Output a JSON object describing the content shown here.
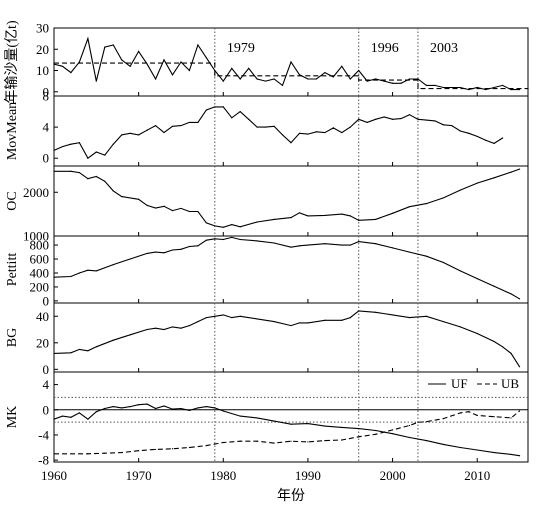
{
  "chart_data": {
    "type": "line",
    "xlabel": "年份",
    "xlim": [
      1960,
      2016
    ],
    "x_ticks": [
      1960,
      1970,
      1980,
      1990,
      2000,
      2010
    ],
    "breakpoints": [
      1979,
      1996,
      2003
    ],
    "breakpoint_labels": [
      "1979",
      "1996",
      "2003"
    ],
    "panels": [
      {
        "ylabel": "年输沙量(亿t)",
        "ylim": [
          -2,
          30
        ],
        "y_ticks": [
          0,
          10,
          20,
          30
        ],
        "series": [
          {
            "style": "solid",
            "x": [
              1960,
              1961,
              1962,
              1963,
              1964,
              1965,
              1966,
              1967,
              1968,
              1969,
              1970,
              1971,
              1972,
              1973,
              1974,
              1975,
              1976,
              1977,
              1978,
              1979,
              1980,
              1981,
              1982,
              1983,
              1984,
              1985,
              1986,
              1987,
              1988,
              1989,
              1990,
              1991,
              1992,
              1993,
              1994,
              1995,
              1996,
              1997,
              1998,
              1999,
              2000,
              2001,
              2002,
              2003,
              2004,
              2005,
              2006,
              2007,
              2008,
              2009,
              2010,
              2011,
              2012,
              2013,
              2014,
              2015
            ],
            "values": [
              13,
              12,
              9,
              14,
              25,
              5,
              21,
              22,
              15,
              12,
              19,
              13,
              6,
              15,
              8,
              14,
              10,
              22,
              16,
              10,
              5,
              11,
              6,
              11,
              6,
              5,
              6,
              3,
              14,
              8,
              6,
              6,
              9,
              7,
              12,
              6,
              10,
              5,
              6,
              5,
              4,
              4,
              6,
              6,
              3,
              3,
              2,
              2,
              2,
              1,
              2,
              1,
              2,
              3,
              1,
              1
            ]
          },
          {
            "style": "dashed",
            "x": [
              1960,
              1979,
              1979,
              1996,
              1996,
              2003,
              2003,
              2016
            ],
            "values": [
              13.5,
              13.5,
              7.5,
              7.5,
              5.5,
              5.5,
              1.5,
              1.5
            ]
          }
        ]
      },
      {
        "ylabel": "MovMean",
        "ylim": [
          -1,
          8
        ],
        "y_ticks": [
          0,
          4,
          8
        ],
        "series": [
          {
            "style": "solid",
            "x": [
              1960,
              1961,
              1962,
              1963,
              1964,
              1965,
              1966,
              1967,
              1968,
              1969,
              1970,
              1971,
              1972,
              1973,
              1974,
              1975,
              1976,
              1977,
              1978,
              1979,
              1980,
              1981,
              1982,
              1983,
              1984,
              1985,
              1986,
              1987,
              1988,
              1989,
              1990,
              1991,
              1992,
              1993,
              1994,
              1995,
              1996,
              1997,
              1998,
              1999,
              2000,
              2001,
              2002,
              2003,
              2004,
              2005,
              2006,
              2007,
              2008,
              2009,
              2010,
              2011,
              2012,
              2013
            ],
            "values": [
              1.0,
              1.5,
              1.8,
              2.0,
              0.0,
              0.8,
              0.4,
              1.8,
              3.0,
              3.2,
              3.0,
              3.6,
              4.2,
              3.3,
              4.1,
              4.2,
              4.6,
              4.6,
              6.2,
              6.6,
              6.6,
              5.2,
              6.0,
              5.0,
              4.0,
              4.0,
              4.1,
              3.0,
              2.0,
              3.2,
              3.1,
              3.4,
              3.3,
              3.9,
              3.3,
              4.0,
              5.0,
              4.6,
              5.0,
              5.3,
              5.0,
              5.1,
              5.6,
              5.0,
              4.9,
              4.8,
              4.3,
              4.2,
              3.5,
              3.2,
              2.8,
              2.3,
              1.9,
              2.6
            ]
          }
        ]
      },
      {
        "ylabel": "OC",
        "ylim": [
          1000,
          2600
        ],
        "y_ticks": [
          1000,
          2000
        ],
        "series": [
          {
            "style": "solid",
            "x": [
              1960,
              1962,
              1963,
              1964,
              1965,
              1966,
              1967,
              1968,
              1970,
              1971,
              1972,
              1973,
              1974,
              1975,
              1976,
              1977,
              1978,
              1979,
              1980,
              1981,
              1982,
              1984,
              1986,
              1988,
              1989,
              1990,
              1992,
              1994,
              1995,
              1996,
              1998,
              2000,
              2002,
              2004,
              2006,
              2008,
              2010,
              2012,
              2014,
              2015
            ],
            "values": [
              2480,
              2480,
              2450,
              2310,
              2360,
              2250,
              2030,
              1900,
              1840,
              1700,
              1640,
              1680,
              1580,
              1630,
              1560,
              1560,
              1300,
              1230,
              1200,
              1260,
              1210,
              1320,
              1380,
              1420,
              1530,
              1460,
              1470,
              1500,
              1460,
              1360,
              1380,
              1520,
              1670,
              1740,
              1870,
              2050,
              2210,
              2330,
              2460,
              2530
            ]
          }
        ]
      },
      {
        "ylabel": "Pettitt",
        "ylim": [
          -30,
          930
        ],
        "y_ticks": [
          0,
          200,
          400,
          600,
          800
        ],
        "series": [
          {
            "style": "solid",
            "x": [
              1960,
              1962,
              1963,
              1964,
              1965,
              1967,
              1969,
              1971,
              1972,
              1973,
              1974,
              1975,
              1976,
              1977,
              1978,
              1979,
              1980,
              1981,
              1982,
              1984,
              1986,
              1988,
              1989,
              1990,
              1992,
              1994,
              1995,
              1996,
              1998,
              2000,
              2002,
              2004,
              2006,
              2008,
              2010,
              2012,
              2014,
              2015
            ],
            "values": [
              340,
              350,
              400,
              440,
              430,
              520,
              600,
              680,
              700,
              690,
              730,
              740,
              780,
              790,
              870,
              890,
              880,
              910,
              880,
              860,
              830,
              770,
              790,
              800,
              820,
              800,
              800,
              850,
              820,
              760,
              700,
              640,
              550,
              430,
              320,
              210,
              100,
              30
            ]
          }
        ]
      },
      {
        "ylabel": "BG",
        "ylim": [
          -2,
          50
        ],
        "y_ticks": [
          0,
          20,
          40
        ],
        "series": [
          {
            "style": "solid",
            "x": [
              1960,
              1962,
              1963,
              1964,
              1965,
              1967,
              1969,
              1971,
              1972,
              1973,
              1974,
              1975,
              1976,
              1977,
              1978,
              1979,
              1980,
              1981,
              1982,
              1984,
              1986,
              1988,
              1989,
              1990,
              1992,
              1994,
              1995,
              1996,
              1998,
              2000,
              2002,
              2004,
              2006,
              2008,
              2010,
              2012,
              2013,
              2014,
              2015
            ],
            "values": [
              12,
              12.5,
              15,
              14,
              17,
              22,
              26,
              30,
              31,
              30,
              32,
              31,
              33,
              36,
              39,
              40,
              41,
              39,
              40,
              38,
              36,
              33,
              35,
              35,
              37,
              37,
              39,
              44,
              43,
              41,
              39,
              40,
              36,
              32,
              27,
              21,
              17,
              12,
              2
            ]
          }
        ]
      },
      {
        "ylabel": "MK",
        "ylim": [
          -8.3,
          6
        ],
        "y_ticks": [
          -8,
          -4,
          0,
          4
        ],
        "reference_lines": [
          1.96,
          -1.96,
          0
        ],
        "series": [
          {
            "name": "UF",
            "style": "solid",
            "x": [
              1960,
              1961,
              1962,
              1963,
              1964,
              1965,
              1966,
              1967,
              1968,
              1969,
              1970,
              1971,
              1972,
              1973,
              1974,
              1975,
              1976,
              1977,
              1978,
              1979,
              1980,
              1982,
              1984,
              1986,
              1988,
              1990,
              1992,
              1994,
              1996,
              1998,
              2000,
              2002,
              2004,
              2006,
              2008,
              2010,
              2012,
              2014,
              2015
            ],
            "values": [
              -1.5,
              -1.0,
              -1.2,
              -0.5,
              -1.5,
              -0.3,
              0.2,
              0.5,
              0.3,
              0.5,
              0.8,
              0.9,
              0.2,
              0.6,
              0.1,
              0.2,
              -0.1,
              0.3,
              0.5,
              0.3,
              -0.2,
              -1.0,
              -1.3,
              -1.8,
              -2.3,
              -2.2,
              -2.6,
              -2.8,
              -3.0,
              -3.3,
              -3.8,
              -4.4,
              -4.9,
              -5.5,
              -6.0,
              -6.4,
              -6.8,
              -7.1,
              -7.3
            ]
          },
          {
            "name": "UB",
            "style": "dashed",
            "x": [
              1960,
              1964,
              1966,
              1968,
              1970,
              1972,
              1974,
              1976,
              1978,
              1980,
              1982,
              1984,
              1986,
              1988,
              1990,
              1992,
              1994,
              1996,
              1998,
              2000,
              2002,
              2003,
              2004,
              2006,
              2008,
              2009,
              2010,
              2012,
              2014,
              2015
            ],
            "values": [
              -7.0,
              -7.0,
              -6.9,
              -6.8,
              -6.5,
              -6.3,
              -6.2,
              -6.0,
              -5.7,
              -5.2,
              -5.0,
              -5.0,
              -5.3,
              -5.0,
              -5.1,
              -4.9,
              -4.8,
              -4.3,
              -3.9,
              -3.2,
              -2.5,
              -2.0,
              -1.9,
              -1.4,
              -0.5,
              -0.3,
              -0.9,
              -1.1,
              -1.3,
              -0.2
            ]
          }
        ]
      }
    ]
  }
}
